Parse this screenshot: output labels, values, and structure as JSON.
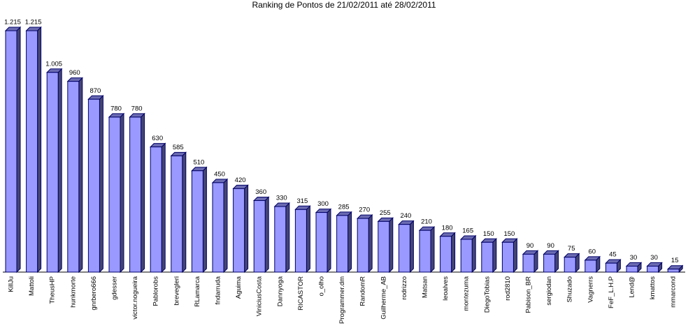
{
  "chart_data": {
    "type": "bar3d",
    "title": "Ranking de Pontos de 21/02/2011 até 28/02/2011",
    "categories": [
      "KillJu",
      "Mattoli",
      "TheusHP",
      "hunkmorte",
      "gnrbero666",
      "gdesser",
      "victor.nogueira",
      "Pablorobs",
      "brevegleri",
      "RLamarca",
      "fndarruda",
      "Aguima",
      "ViniciusCosta",
      "Dannyoga",
      "RICASTOR",
      "o_olho",
      "Programmer.dm",
      "RandomR",
      "Guilherme_AB",
      "rodrizzo",
      "Matsan",
      "leoalves",
      "montezuma",
      "DiegoTobias",
      "rod2810",
      "Pabison_BR",
      "sergiodan",
      "Shuzado",
      "Vagnerrs",
      "FeF_L.H.P",
      "Lend@",
      "kmattos",
      "mmarcond"
    ],
    "values": [
      1215,
      1215,
      1005,
      960,
      870,
      780,
      780,
      630,
      585,
      510,
      450,
      420,
      360,
      330,
      315,
      300,
      285,
      270,
      255,
      240,
      210,
      180,
      165,
      150,
      150,
      90,
      90,
      75,
      60,
      45,
      30,
      30,
      15
    ],
    "value_labels": [
      "1.215",
      "1.215",
      "1.005",
      "960",
      "870",
      "780",
      "780",
      "630",
      "585",
      "510",
      "450",
      "420",
      "360",
      "330",
      "315",
      "300",
      "285",
      "270",
      "255",
      "240",
      "210",
      "180",
      "165",
      "150",
      "150",
      "90",
      "90",
      "75",
      "60",
      "45",
      "30",
      "30",
      "15"
    ],
    "color": "#9999ff"
  }
}
